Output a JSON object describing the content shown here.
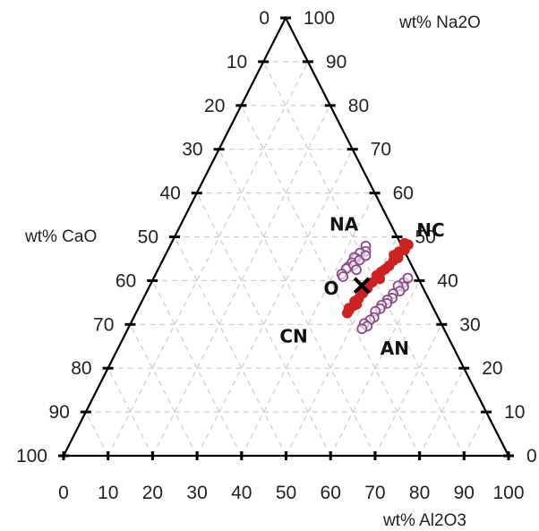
{
  "chart_data": {
    "type": "scatter",
    "subtype": "ternary",
    "title": "",
    "axes": {
      "left": {
        "label": "wt% CaO",
        "ticks": [
          "0",
          "10",
          "20",
          "30",
          "40",
          "50",
          "60",
          "70",
          "80",
          "90",
          "100"
        ]
      },
      "right": {
        "label": "wt% Na2O",
        "ticks": [
          "100",
          "90",
          "80",
          "70",
          "60",
          "50",
          "40",
          "30",
          "20",
          "10",
          "0"
        ]
      },
      "bottom": {
        "label": "wt% Al2O3",
        "ticks": [
          "0",
          "10",
          "20",
          "30",
          "40",
          "50",
          "60",
          "70",
          "80",
          "90",
          "100"
        ]
      }
    },
    "range": [
      0,
      100
    ],
    "grid": true,
    "colors": {
      "axis": "#000000",
      "grid": "#cccccc",
      "NA": "#8a4a86",
      "NC": "#cc2222",
      "CN": "#cc2222",
      "AN": "#8a4a86",
      "O": "#000000"
    },
    "annotations": [
      {
        "text": "NA",
        "al2o3": 36.6,
        "na2o": 52.9
      },
      {
        "text": "NC",
        "al2o3": 56.8,
        "na2o": 51.5
      },
      {
        "text": "O",
        "al2o3": 41.1,
        "na2o": 38.2
      },
      {
        "text": "CN",
        "al2o3": 38.1,
        "na2o": 27.3
      },
      {
        "text": "AN",
        "al2o3": 62.2,
        "na2o": 24.5
      }
    ],
    "series": [
      {
        "key": "NA",
        "marker": "open-circle",
        "points": [
          {
            "al2o3": 44.0,
            "na2o": 47.9
          },
          {
            "al2o3": 44.6,
            "na2o": 46.7
          },
          {
            "al2o3": 43.5,
            "na2o": 46.3
          },
          {
            "al2o3": 43.2,
            "na2o": 45.1
          },
          {
            "al2o3": 42.7,
            "na2o": 45.3
          },
          {
            "al2o3": 42.8,
            "na2o": 44.1
          },
          {
            "al2o3": 42.4,
            "na2o": 43.1
          },
          {
            "al2o3": 42.2,
            "na2o": 42.7
          },
          {
            "al2o3": 41.8,
            "na2o": 41.5
          },
          {
            "al2o3": 42.4,
            "na2o": 40.9
          },
          {
            "al2o3": 43.5,
            "na2o": 43.5
          },
          {
            "al2o3": 44.2,
            "na2o": 44.7
          },
          {
            "al2o3": 44.6,
            "na2o": 42.5
          },
          {
            "al2o3": 45.1,
            "na2o": 45.7
          }
        ]
      },
      {
        "key": "NC",
        "marker": "filled-circle",
        "points": [
          {
            "al2o3": 53.4,
            "na2o": 48.2
          },
          {
            "al2o3": 53.2,
            "na2o": 47.0
          },
          {
            "al2o3": 52.1,
            "na2o": 46.6
          },
          {
            "al2o3": 52.6,
            "na2o": 45.2
          },
          {
            "al2o3": 51.9,
            "na2o": 44.6
          },
          {
            "al2o3": 51.5,
            "na2o": 43.4
          },
          {
            "al2o3": 51.0,
            "na2o": 42.6
          },
          {
            "al2o3": 50.4,
            "na2o": 42.0
          },
          {
            "al2o3": 50.9,
            "na2o": 40.4
          },
          {
            "al2o3": 49.6,
            "na2o": 39.6
          },
          {
            "al2o3": 49.2,
            "na2o": 38.2
          },
          {
            "al2o3": 52.4,
            "na2o": 48.5
          },
          {
            "al2o3": 51.4,
            "na2o": 45.8
          },
          {
            "al2o3": 49.8,
            "na2o": 41.2
          }
        ]
      },
      {
        "key": "CN",
        "marker": "filled-circle",
        "points": [
          {
            "al2o3": 48.7,
            "na2o": 37.1
          },
          {
            "al2o3": 48.4,
            "na2o": 35.9
          },
          {
            "al2o3": 47.8,
            "na2o": 35.3
          },
          {
            "al2o3": 48.1,
            "na2o": 34.3
          },
          {
            "al2o3": 47.3,
            "na2o": 33.7
          },
          {
            "al2o3": 47.6,
            "na2o": 33.3
          },
          {
            "al2o3": 47.5,
            "na2o": 32.6
          },
          {
            "al2o3": 48.6,
            "na2o": 34.6
          }
        ]
      },
      {
        "key": "AN",
        "marker": "open-circle",
        "points": [
          {
            "al2o3": 56.7,
            "na2o": 39.6
          },
          {
            "al2o3": 57.2,
            "na2o": 38.6
          },
          {
            "al2o3": 55.8,
            "na2o": 38.8
          },
          {
            "al2o3": 56.8,
            "na2o": 37.6
          },
          {
            "al2o3": 55.6,
            "na2o": 37.0
          },
          {
            "al2o3": 55.9,
            "na2o": 36.0
          },
          {
            "al2o3": 55.0,
            "na2o": 35.6
          },
          {
            "al2o3": 55.3,
            "na2o": 34.8
          },
          {
            "al2o3": 54.3,
            "na2o": 34.4
          },
          {
            "al2o3": 54.4,
            "na2o": 33.6
          },
          {
            "al2o3": 53.6,
            "na2o": 33.0
          },
          {
            "al2o3": 54.0,
            "na2o": 31.6
          },
          {
            "al2o3": 53.4,
            "na2o": 31.0
          },
          {
            "al2o3": 52.5,
            "na2o": 30.2
          },
          {
            "al2o3": 53.5,
            "na2o": 29.6
          },
          {
            "al2o3": 52.6,
            "na2o": 29.0
          },
          {
            "al2o3": 57.1,
            "na2o": 40.6
          }
        ]
      }
    ],
    "origin": {
      "text": "O",
      "marker": "cross",
      "al2o3": 47.6,
      "na2o": 38.9
    }
  }
}
